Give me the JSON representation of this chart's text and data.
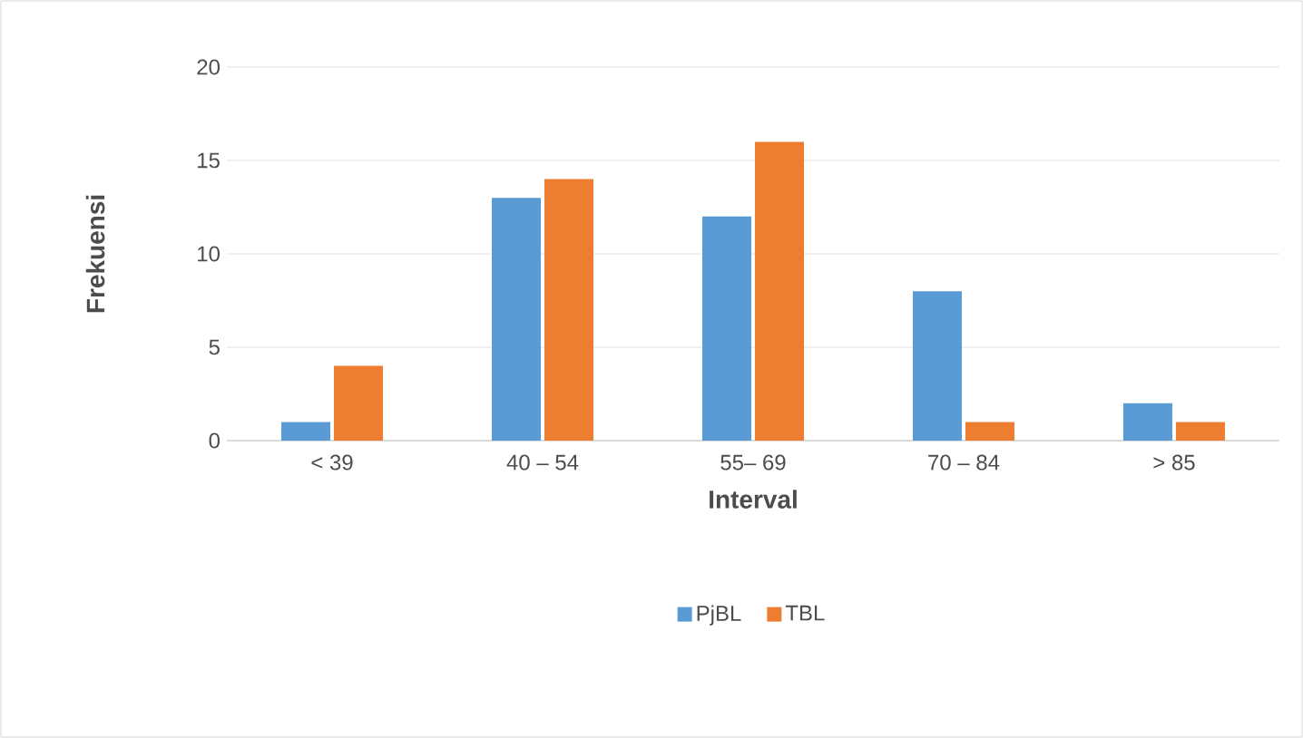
{
  "chart_data": {
    "type": "bar",
    "xlabel": "Interval",
    "ylabel": "Frekuensi",
    "categories": [
      "< 39",
      "40 – 54",
      "55– 69",
      "70 – 84",
      "> 85"
    ],
    "series": [
      {
        "name": "PjBL",
        "color": "#5b9bd5",
        "values": [
          1,
          13,
          12,
          8,
          2
        ]
      },
      {
        "name": "TBL",
        "color": "#ed7d31",
        "values": [
          4,
          14,
          16,
          1,
          1
        ]
      }
    ],
    "ylim": [
      0,
      20
    ],
    "yticks": [
      0,
      5,
      10,
      15,
      20
    ],
    "grid": "y",
    "legend": "bottom"
  }
}
